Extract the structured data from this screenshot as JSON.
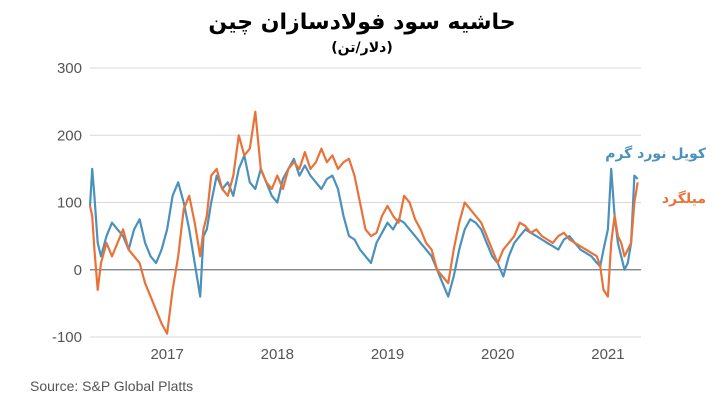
{
  "chart_data": {
    "type": "line",
    "title": "حاشیه سود فولادسازان چین",
    "subtitle": "(دلار/تن)",
    "xlabel": "",
    "ylabel": "",
    "xlim": [
      2016.3,
      2021.3
    ],
    "ylim": [
      -100,
      300
    ],
    "yticks": [
      -100,
      0,
      100,
      200,
      300
    ],
    "xticks": [
      2017,
      2018,
      2019,
      2020,
      2021
    ],
    "grid": "horizontal",
    "legend_position": "right",
    "source": "Source: S&P Global Platts",
    "series": [
      {
        "name": "کویل نورد گرم",
        "color": "#4a91bd",
        "x": [
          2016.3,
          2016.32,
          2016.34,
          2016.37,
          2016.4,
          2016.45,
          2016.5,
          2016.55,
          2016.6,
          2016.65,
          2016.7,
          2016.75,
          2016.8,
          2016.85,
          2016.9,
          2016.95,
          2017.0,
          2017.05,
          2017.1,
          2017.15,
          2017.2,
          2017.25,
          2017.3,
          2017.33,
          2017.36,
          2017.4,
          2017.45,
          2017.5,
          2017.55,
          2017.6,
          2017.65,
          2017.7,
          2017.75,
          2017.8,
          2017.85,
          2017.9,
          2017.95,
          2018.0,
          2018.05,
          2018.1,
          2018.15,
          2018.2,
          2018.25,
          2018.3,
          2018.35,
          2018.4,
          2018.45,
          2018.5,
          2018.55,
          2018.6,
          2018.65,
          2018.7,
          2018.75,
          2018.8,
          2018.85,
          2018.9,
          2018.95,
          2019.0,
          2019.05,
          2019.1,
          2019.15,
          2019.2,
          2019.25,
          2019.3,
          2019.35,
          2019.4,
          2019.45,
          2019.5,
          2019.55,
          2019.6,
          2019.65,
          2019.7,
          2019.75,
          2019.8,
          2019.85,
          2019.9,
          2019.95,
          2020.0,
          2020.05,
          2020.1,
          2020.15,
          2020.2,
          2020.25,
          2020.3,
          2020.35,
          2020.4,
          2020.45,
          2020.5,
          2020.55,
          2020.6,
          2020.65,
          2020.7,
          2020.75,
          2020.8,
          2020.85,
          2020.9,
          2020.93,
          2020.96,
          2021.0,
          2021.03,
          2021.06,
          2021.09,
          2021.12,
          2021.15,
          2021.18,
          2021.21,
          2021.24,
          2021.27
        ],
        "values": [
          95,
          150,
          110,
          40,
          20,
          50,
          70,
          60,
          50,
          30,
          60,
          75,
          40,
          20,
          10,
          30,
          60,
          110,
          130,
          100,
          60,
          10,
          -40,
          50,
          60,
          100,
          140,
          120,
          130,
          110,
          150,
          170,
          130,
          120,
          150,
          130,
          110,
          100,
          135,
          150,
          165,
          140,
          155,
          140,
          130,
          120,
          135,
          140,
          120,
          80,
          50,
          45,
          30,
          20,
          10,
          40,
          55,
          70,
          60,
          75,
          70,
          60,
          50,
          40,
          30,
          20,
          0,
          -20,
          -40,
          -10,
          30,
          60,
          75,
          70,
          60,
          40,
          20,
          10,
          -10,
          20,
          40,
          50,
          60,
          55,
          50,
          45,
          40,
          35,
          30,
          45,
          50,
          40,
          30,
          25,
          20,
          10,
          5,
          30,
          60,
          150,
          80,
          40,
          20,
          0,
          10,
          40,
          140,
          135
        ]
      },
      {
        "name": "میلگرد",
        "color": "#e8733a",
        "x": [
          2016.3,
          2016.32,
          2016.34,
          2016.37,
          2016.4,
          2016.45,
          2016.5,
          2016.55,
          2016.6,
          2016.65,
          2016.7,
          2016.75,
          2016.8,
          2016.85,
          2016.9,
          2016.95,
          2017.0,
          2017.05,
          2017.1,
          2017.15,
          2017.2,
          2017.25,
          2017.3,
          2017.33,
          2017.36,
          2017.4,
          2017.45,
          2017.5,
          2017.55,
          2017.6,
          2017.65,
          2017.7,
          2017.75,
          2017.8,
          2017.85,
          2017.9,
          2017.95,
          2018.0,
          2018.05,
          2018.1,
          2018.15,
          2018.2,
          2018.25,
          2018.3,
          2018.35,
          2018.4,
          2018.45,
          2018.5,
          2018.55,
          2018.6,
          2018.65,
          2018.7,
          2018.75,
          2018.8,
          2018.85,
          2018.9,
          2018.95,
          2019.0,
          2019.05,
          2019.1,
          2019.15,
          2019.2,
          2019.25,
          2019.3,
          2019.35,
          2019.4,
          2019.45,
          2019.5,
          2019.55,
          2019.6,
          2019.65,
          2019.7,
          2019.75,
          2019.8,
          2019.85,
          2019.9,
          2019.95,
          2020.0,
          2020.05,
          2020.1,
          2020.15,
          2020.2,
          2020.25,
          2020.3,
          2020.35,
          2020.4,
          2020.45,
          2020.5,
          2020.55,
          2020.6,
          2020.65,
          2020.7,
          2020.75,
          2020.8,
          2020.85,
          2020.9,
          2020.93,
          2020.96,
          2021.0,
          2021.03,
          2021.06,
          2021.09,
          2021.12,
          2021.15,
          2021.18,
          2021.21,
          2021.24,
          2021.27
        ],
        "values": [
          95,
          80,
          30,
          -30,
          10,
          40,
          20,
          40,
          60,
          30,
          20,
          10,
          -20,
          -40,
          -60,
          -80,
          -95,
          -30,
          20,
          90,
          110,
          70,
          20,
          60,
          80,
          140,
          150,
          120,
          110,
          140,
          200,
          170,
          180,
          235,
          150,
          130,
          120,
          140,
          120,
          150,
          160,
          150,
          175,
          150,
          160,
          180,
          160,
          170,
          150,
          160,
          165,
          140,
          100,
          60,
          50,
          55,
          80,
          95,
          80,
          70,
          110,
          100,
          75,
          60,
          40,
          30,
          0,
          -10,
          -20,
          30,
          70,
          100,
          90,
          80,
          70,
          50,
          30,
          10,
          30,
          40,
          50,
          70,
          65,
          55,
          60,
          50,
          45,
          40,
          50,
          55,
          45,
          40,
          35,
          30,
          25,
          20,
          5,
          -30,
          -40,
          40,
          80,
          50,
          40,
          20,
          30,
          40,
          100,
          130
        ]
      }
    ]
  }
}
